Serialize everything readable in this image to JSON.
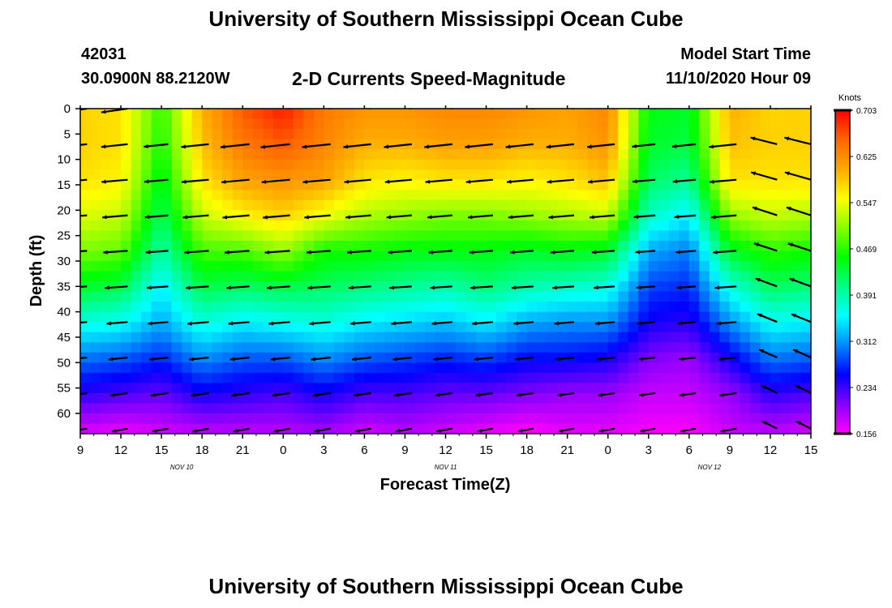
{
  "page": {
    "title_top": "University of Southern Mississippi Ocean Cube",
    "title_bottom": "University of Southern Mississippi Ocean Cube",
    "station_id": "42031",
    "station_location": "30.0900N 88.2120W",
    "subtitle": "2-D Currents Speed-Magnitude",
    "model_start_label": "Model Start Time",
    "model_start_value": "11/10/2020 Hour 09"
  },
  "chart_data": {
    "type": "heatmap",
    "xlabel": "Forecast Time(Z)",
    "ylabel": "Depth (ft)",
    "colorbar_label": "Knots",
    "x_range_hours": [
      0,
      54
    ],
    "x_tick_labels": [
      "9",
      "12",
      "15",
      "18",
      "21",
      "0",
      "3",
      "6",
      "9",
      "12",
      "15",
      "18",
      "21",
      "0",
      "3",
      "6",
      "9",
      "12",
      "15"
    ],
    "date_labels": [
      {
        "label": "NOV 10",
        "hour": 7.5
      },
      {
        "label": "NOV 11",
        "hour": 27
      },
      {
        "label": "NOV 12",
        "hour": 46.5
      }
    ],
    "y_range_ft": [
      0,
      64
    ],
    "y_ticks": [
      0,
      5,
      10,
      15,
      20,
      25,
      30,
      35,
      40,
      45,
      50,
      55,
      60
    ],
    "colorbar_ticks": [
      "0.703",
      "0.625",
      "0.547",
      "0.469",
      "0.391",
      "0.312",
      "0.234",
      "0.156"
    ],
    "colorbar_range": [
      0.156,
      0.703
    ],
    "colorscale": [
      "#ff00ff",
      "#8800ff",
      "#0000ff",
      "#0088ff",
      "#00ffff",
      "#00ff88",
      "#00ff00",
      "#88ff00",
      "#ffff00",
      "#ffaa00",
      "#ff6600",
      "#ff0000"
    ],
    "profile_hours": [
      0,
      3,
      6,
      9,
      12,
      15,
      18,
      21,
      24,
      27,
      30,
      33,
      36,
      39,
      42,
      45,
      48,
      51,
      54
    ],
    "profile_depths_ft": [
      0,
      7,
      14,
      21,
      28,
      35,
      42,
      49,
      56,
      63
    ],
    "speed_knots": [
      [
        0.58,
        0.58,
        0.57,
        0.54,
        0.5,
        0.44,
        0.37,
        0.3,
        0.24,
        0.18
      ],
      [
        0.57,
        0.57,
        0.56,
        0.53,
        0.49,
        0.43,
        0.36,
        0.29,
        0.23,
        0.17
      ],
      [
        0.47,
        0.46,
        0.44,
        0.42,
        0.39,
        0.35,
        0.32,
        0.27,
        0.22,
        0.18
      ],
      [
        0.6,
        0.59,
        0.57,
        0.53,
        0.48,
        0.43,
        0.37,
        0.31,
        0.25,
        0.19
      ],
      [
        0.66,
        0.64,
        0.61,
        0.56,
        0.48,
        0.42,
        0.35,
        0.29,
        0.24,
        0.19
      ],
      [
        0.69,
        0.66,
        0.62,
        0.58,
        0.51,
        0.43,
        0.36,
        0.29,
        0.23,
        0.19
      ],
      [
        0.64,
        0.63,
        0.61,
        0.55,
        0.46,
        0.42,
        0.37,
        0.31,
        0.25,
        0.2
      ],
      [
        0.62,
        0.6,
        0.57,
        0.52,
        0.46,
        0.41,
        0.35,
        0.29,
        0.23,
        0.18
      ],
      [
        0.62,
        0.6,
        0.56,
        0.51,
        0.45,
        0.4,
        0.34,
        0.28,
        0.23,
        0.19
      ],
      [
        0.63,
        0.61,
        0.57,
        0.5,
        0.45,
        0.39,
        0.33,
        0.27,
        0.22,
        0.18
      ],
      [
        0.63,
        0.61,
        0.57,
        0.5,
        0.45,
        0.41,
        0.35,
        0.28,
        0.22,
        0.17
      ],
      [
        0.62,
        0.6,
        0.56,
        0.51,
        0.44,
        0.39,
        0.32,
        0.26,
        0.21,
        0.16
      ],
      [
        0.61,
        0.6,
        0.57,
        0.52,
        0.45,
        0.38,
        0.31,
        0.26,
        0.2,
        0.17
      ],
      [
        0.63,
        0.62,
        0.59,
        0.53,
        0.44,
        0.37,
        0.31,
        0.25,
        0.2,
        0.17
      ],
      [
        0.45,
        0.44,
        0.42,
        0.38,
        0.32,
        0.28,
        0.25,
        0.21,
        0.18,
        0.16
      ],
      [
        0.44,
        0.43,
        0.4,
        0.35,
        0.3,
        0.27,
        0.24,
        0.2,
        0.18,
        0.16
      ],
      [
        0.6,
        0.59,
        0.57,
        0.51,
        0.44,
        0.37,
        0.31,
        0.25,
        0.2,
        0.18
      ],
      [
        0.58,
        0.58,
        0.57,
        0.53,
        0.47,
        0.42,
        0.36,
        0.3,
        0.24,
        0.19
      ],
      [
        0.58,
        0.58,
        0.57,
        0.52,
        0.46,
        0.41,
        0.35,
        0.29,
        0.23,
        0.18
      ]
    ],
    "arrow_grid_hours": [
      0.5,
      3.5,
      6.5,
      9.5,
      12.5,
      15.5,
      18.5,
      21.5,
      24.5,
      27.5,
      30.5,
      33.5,
      36.5,
      39.5,
      42.5,
      45.5,
      48.5,
      51.5,
      54.0
    ],
    "arrow_grid_depths_ft": [
      0,
      7,
      14,
      21,
      28,
      35,
      42,
      49,
      56,
      63
    ],
    "arrow_direction_deg_profile": [
      172,
      174,
      175,
      175,
      176,
      176,
      175,
      174,
      172,
      170
    ],
    "arrow_direction_deg_late_profile": [
      192,
      194,
      196,
      198,
      198,
      200,
      202,
      204,
      206,
      206
    ],
    "surface_arrow_direction_deg": 10
  }
}
